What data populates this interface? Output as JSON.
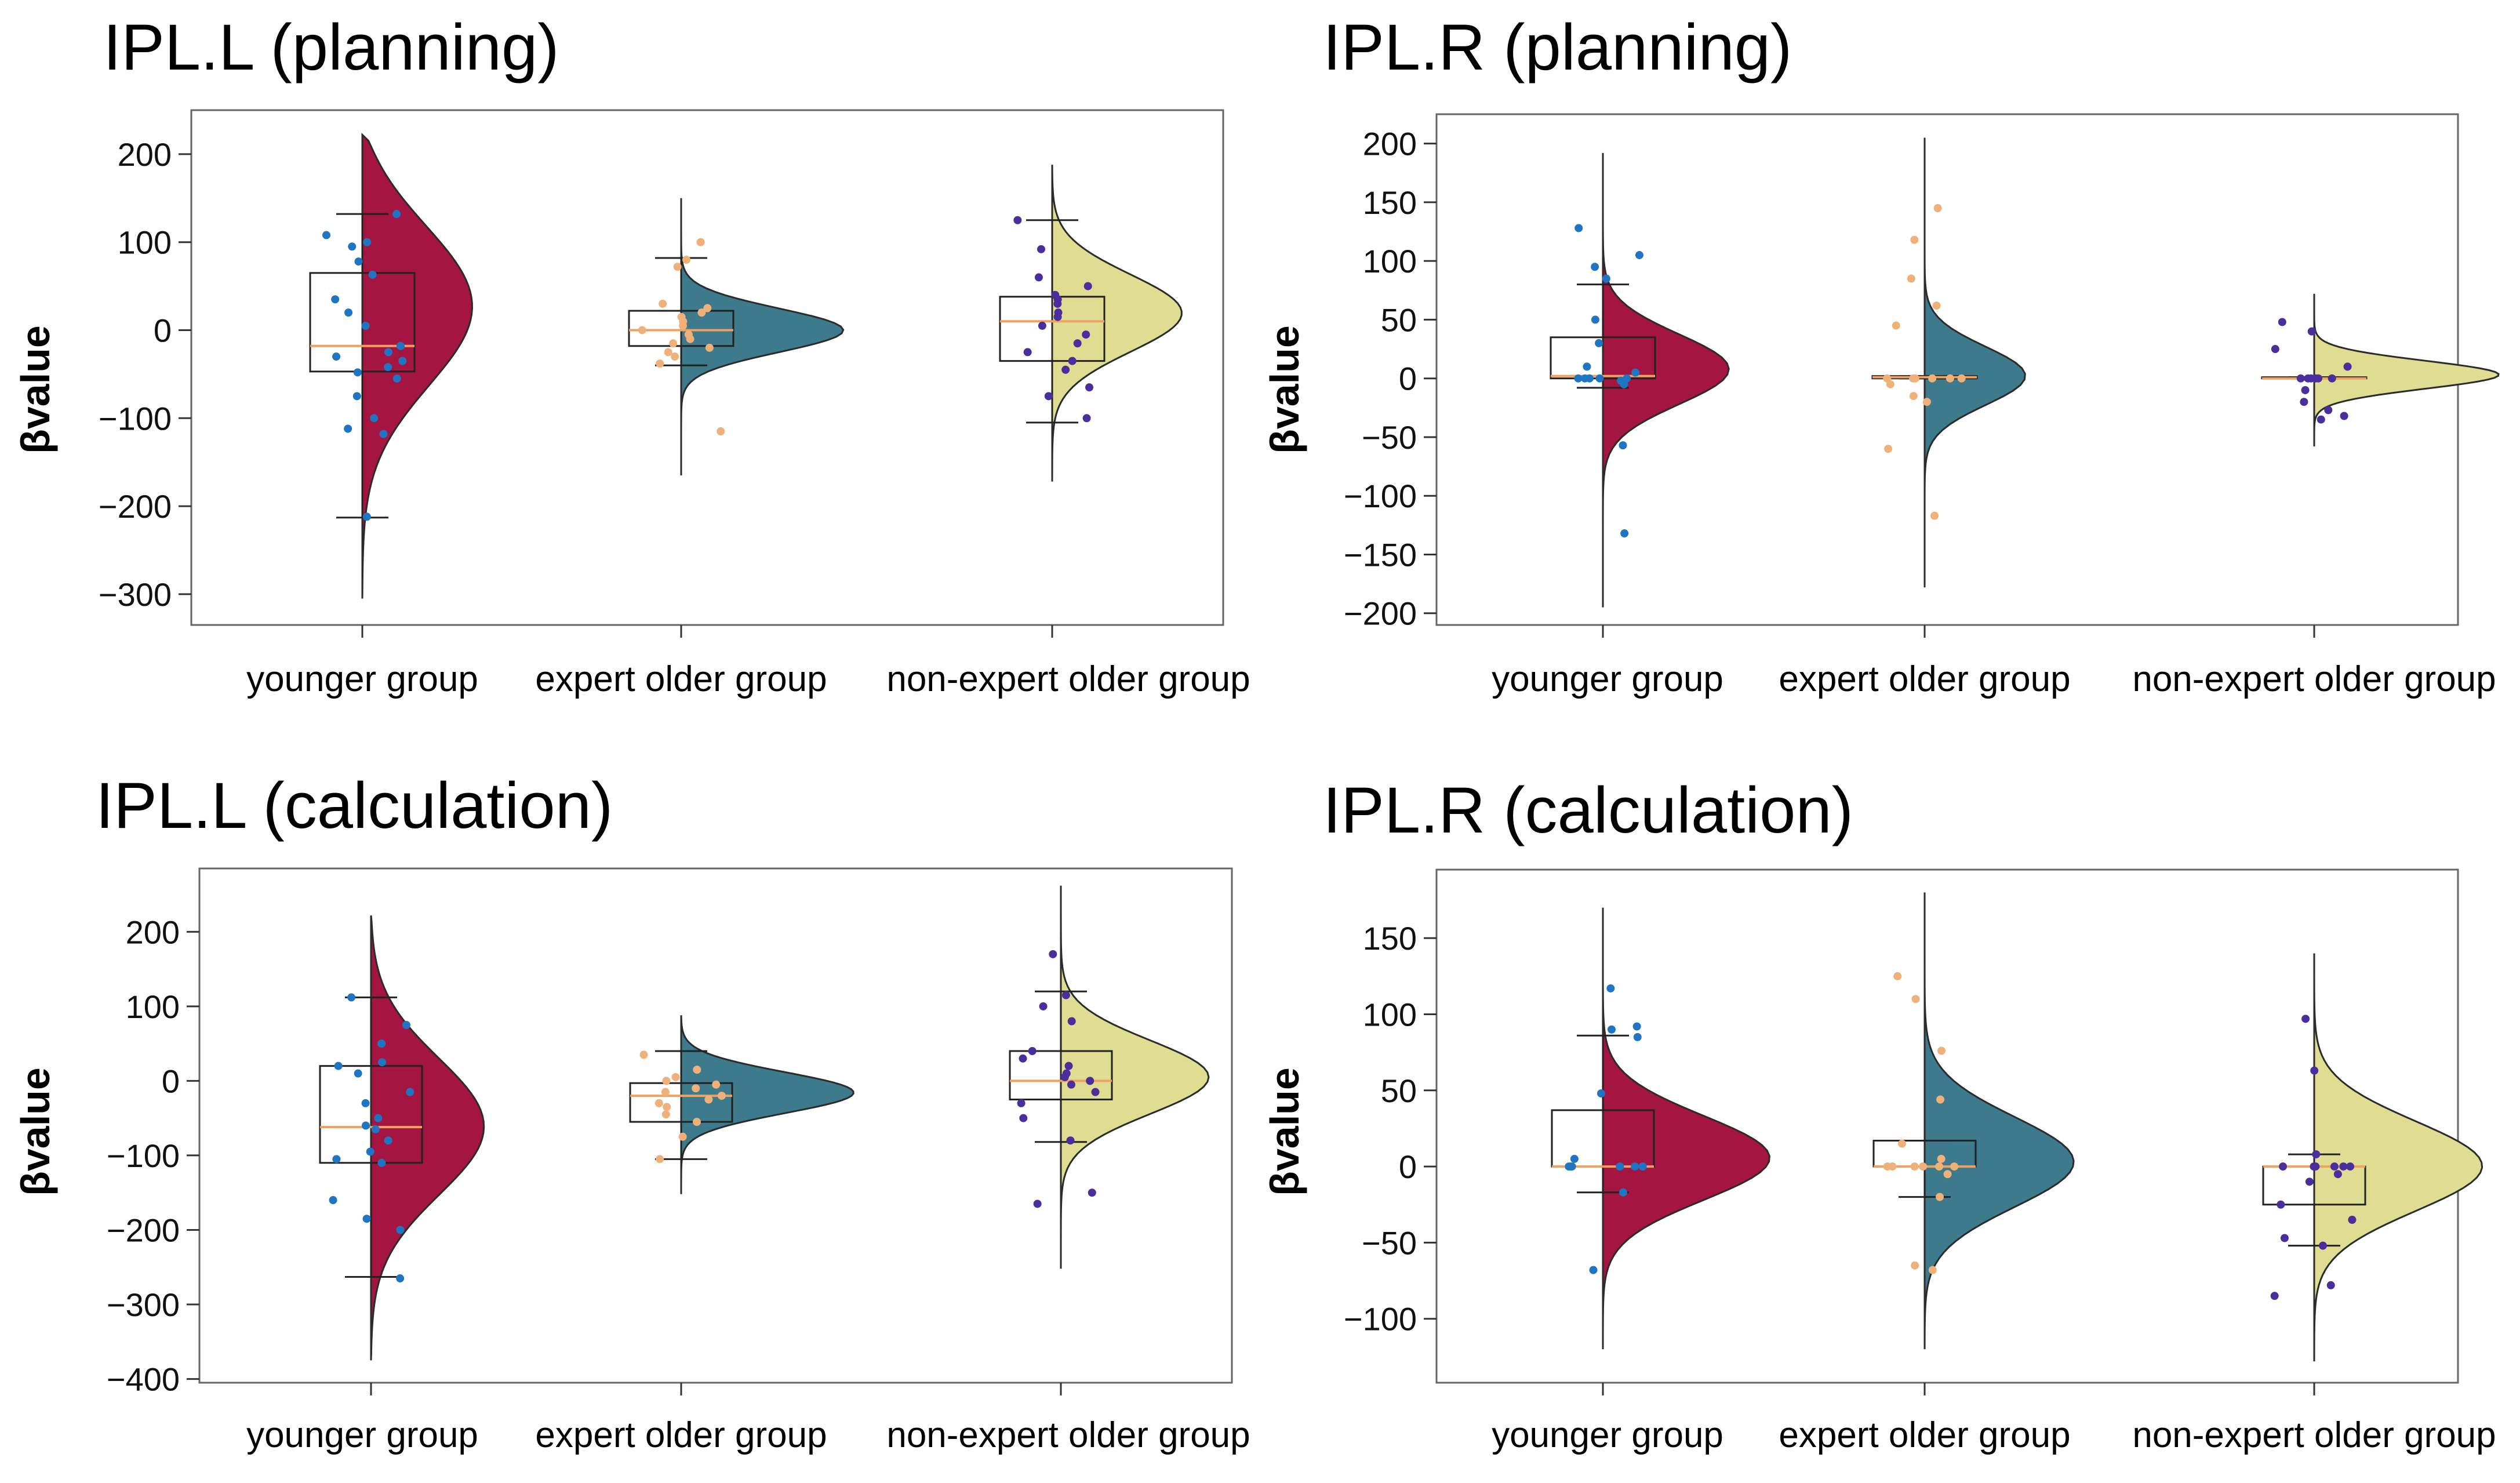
{
  "colors": {
    "younger": "#a51541",
    "expert": "#3d7a8c",
    "nonexpert": "#dedd92",
    "younger_points": "#1f75c2",
    "expert_points": "#efb07a",
    "nonexpert_points": "#4a2f9c",
    "median_line": "#f0a060",
    "frame": "#666666"
  },
  "chart_data": [
    {
      "id": "ipl-l-planning",
      "type": "raincloud",
      "title": "IPL.L (planning)",
      "ylabel": "βvalue",
      "ylim": [
        -335,
        250
      ],
      "yticks": [
        200,
        100,
        0,
        -100,
        -200,
        -300
      ],
      "ytick_labels": [
        "200",
        "100",
        "0",
        "−100",
        "−200",
        "−300"
      ],
      "categories": [
        "younger group",
        "expert older group",
        "non-expert older group"
      ],
      "series": [
        {
          "name": "younger group",
          "box": {
            "q1": -47,
            "median": -18,
            "q3": 65,
            "whisker_low": -213,
            "whisker_high": 132
          },
          "density_range": [
            -305,
            222
          ],
          "density_peak": 35,
          "density_spread": 95,
          "density_width": 0.7,
          "points": [
            132,
            108,
            100,
            95,
            78,
            63,
            35,
            20,
            5,
            -18,
            -25,
            -30,
            -35,
            -42,
            -48,
            -55,
            -75,
            -100,
            -112,
            -118,
            -212
          ]
        },
        {
          "name": "expert older group",
          "box": {
            "q1": -18,
            "median": 0,
            "q3": 22,
            "whisker_low": -40,
            "whisker_high": 82
          },
          "density_range": [
            -165,
            150
          ],
          "density_peak": 0,
          "density_spread": 25,
          "density_width": 1.0,
          "points": [
            100,
            80,
            72,
            30,
            25,
            20,
            15,
            10,
            5,
            0,
            -5,
            -10,
            -15,
            -20,
            -25,
            -30,
            -38,
            -115
          ]
        },
        {
          "name": "non-expert older group",
          "box": {
            "q1": -35,
            "median": 10,
            "q3": 38,
            "whisker_low": -105,
            "whisker_high": 125
          },
          "density_range": [
            -172,
            188
          ],
          "density_peak": 20,
          "density_spread": 45,
          "density_width": 0.8,
          "points": [
            125,
            92,
            60,
            50,
            40,
            35,
            30,
            20,
            15,
            5,
            -5,
            -15,
            -25,
            -35,
            -45,
            -65,
            -75,
            -100
          ]
        }
      ]
    },
    {
      "id": "ipl-r-planning",
      "type": "raincloud",
      "title": "IPL.R (planning)",
      "ylabel": "βvalue",
      "ylim": [
        -210,
        225
      ],
      "yticks": [
        200,
        150,
        100,
        50,
        0,
        -50,
        -100,
        -150,
        -200
      ],
      "ytick_labels": [
        "200",
        "150",
        "100",
        "50",
        "0",
        "−50",
        "−100",
        "−150",
        "−200"
      ],
      "categories": [
        "younger group",
        "expert older group",
        "non-expert older group"
      ],
      "series": [
        {
          "name": "younger group",
          "box": {
            "q1": 0,
            "median": 2,
            "q3": 35,
            "whisker_low": -8,
            "whisker_high": 80
          },
          "density_range": [
            -195,
            192
          ],
          "density_peak": 8,
          "density_spread": 30,
          "density_width": 0.75,
          "points": [
            128,
            105,
            95,
            85,
            50,
            30,
            10,
            5,
            0,
            0,
            0,
            0,
            0,
            -2,
            -5,
            -57,
            -132
          ]
        },
        {
          "name": "expert older group",
          "box": {
            "q1": 0,
            "median": 1,
            "q3": 2,
            "whisker_low": 0,
            "whisker_high": 2
          },
          "density_range": [
            -178,
            205
          ],
          "density_peak": 2,
          "density_spread": 25,
          "density_width": 0.6,
          "points": [
            145,
            118,
            85,
            62,
            45,
            0,
            0,
            0,
            0,
            0,
            0,
            0,
            -5,
            -15,
            -20,
            -60,
            -117
          ]
        },
        {
          "name": "non-expert older group",
          "box": {
            "q1": 0,
            "median": 0,
            "q3": 1,
            "whisker_low": 0,
            "whisker_high": 1
          },
          "density_range": [
            -58,
            72
          ],
          "density_peak": 3,
          "density_spread": 12,
          "density_width": 1.1,
          "points": [
            48,
            40,
            25,
            10,
            0,
            0,
            0,
            0,
            0,
            0,
            -10,
            -20,
            -27,
            -32,
            -35
          ]
        }
      ]
    },
    {
      "id": "ipl-l-calculation",
      "type": "raincloud",
      "title": "IPL.L (calculation)",
      "ylabel": "βvalue",
      "ylim": [
        -405,
        285
      ],
      "yticks": [
        200,
        100,
        0,
        -100,
        -200,
        -300,
        -400
      ],
      "ytick_labels": [
        "200",
        "100",
        "0",
        "−100",
        "−200",
        "−300",
        "−400"
      ],
      "categories": [
        "younger group",
        "expert older group",
        "non-expert older group"
      ],
      "series": [
        {
          "name": "younger group",
          "box": {
            "q1": -110,
            "median": -62,
            "q3": 20,
            "whisker_low": -263,
            "whisker_high": 112
          },
          "density_range": [
            -375,
            222
          ],
          "density_peak": -60,
          "density_spread": 95,
          "density_width": 0.65,
          "points": [
            112,
            75,
            50,
            25,
            20,
            10,
            -15,
            -30,
            -50,
            -60,
            -65,
            -80,
            -95,
            -105,
            -110,
            -160,
            -185,
            -200,
            -265
          ]
        },
        {
          "name": "expert older group",
          "box": {
            "q1": -55,
            "median": -20,
            "q3": -3,
            "whisker_low": -105,
            "whisker_high": 40
          },
          "density_range": [
            -152,
            88
          ],
          "density_peak": -15,
          "density_spread": 28,
          "density_width": 1.0,
          "points": [
            35,
            15,
            5,
            0,
            -5,
            -10,
            -15,
            -20,
            -25,
            -30,
            -35,
            -45,
            -55,
            -75,
            -105
          ]
        },
        {
          "name": "non-expert older group",
          "box": {
            "q1": -25,
            "median": 0,
            "q3": 40,
            "whisker_low": -82,
            "whisker_high": 120
          },
          "density_range": [
            -252,
            262
          ],
          "density_peak": 5,
          "density_spread": 50,
          "density_width": 0.85,
          "points": [
            170,
            115,
            100,
            80,
            40,
            30,
            20,
            10,
            5,
            0,
            -5,
            -15,
            -30,
            -50,
            -80,
            -150,
            -165
          ]
        }
      ]
    },
    {
      "id": "ipl-r-calculation",
      "type": "raincloud",
      "title": "IPL.R (calculation)",
      "ylabel": "βvalue",
      "ylim": [
        -142,
        195
      ],
      "yticks": [
        150,
        100,
        50,
        0,
        -50,
        -100
      ],
      "ytick_labels": [
        "150",
        "100",
        "50",
        "0",
        "−50",
        "−100"
      ],
      "categories": [
        "younger group",
        "expert older group",
        "non-expert older group"
      ],
      "series": [
        {
          "name": "younger group",
          "box": {
            "q1": 0,
            "median": 0,
            "q3": 37,
            "whisker_low": -17,
            "whisker_high": 86
          },
          "density_range": [
            -120,
            170
          ],
          "density_peak": 5,
          "density_spread": 28,
          "density_width": 1.0,
          "points": [
            117,
            92,
            90,
            85,
            48,
            5,
            0,
            0,
            0,
            0,
            0,
            0,
            0,
            -17,
            -68
          ]
        },
        {
          "name": "expert older group",
          "box": {
            "q1": 0,
            "median": 0,
            "q3": 17,
            "whisker_low": -20,
            "whisker_high": 17
          },
          "density_range": [
            -120,
            180
          ],
          "density_peak": 2,
          "density_spread": 30,
          "density_width": 0.9,
          "points": [
            125,
            110,
            76,
            44,
            15,
            5,
            0,
            0,
            0,
            0,
            0,
            0,
            -5,
            -20,
            -65,
            -68
          ]
        },
        {
          "name": "non-expert older group",
          "box": {
            "q1": -25,
            "median": 0,
            "q3": 0,
            "whisker_low": -52,
            "whisker_high": 8
          },
          "density_range": [
            -128,
            140
          ],
          "density_peak": 0,
          "density_spread": 30,
          "density_width": 1.0,
          "points": [
            97,
            63,
            8,
            0,
            0,
            0,
            0,
            0,
            0,
            -5,
            -10,
            -25,
            -35,
            -47,
            -52,
            -78,
            -85
          ]
        }
      ]
    }
  ]
}
